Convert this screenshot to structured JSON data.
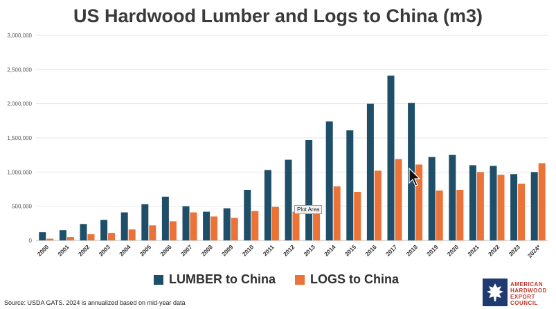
{
  "colors": {
    "lumber": "#1f4e69",
    "logs": "#ec7338",
    "grid": "#e6e6e6",
    "axis_text": "#555555"
  },
  "chart_data": {
    "type": "bar",
    "title": "US Hardwood Lumber and Logs to China (m3)",
    "categories": [
      "2000",
      "2001",
      "2002",
      "2003",
      "2004",
      "2005",
      "2006",
      "2007",
      "2008",
      "2009",
      "2010",
      "2011",
      "2012",
      "2013",
      "2014",
      "2015",
      "2016",
      "2017",
      "2018",
      "2019",
      "2020",
      "2021",
      "2022",
      "2023",
      "2024*"
    ],
    "series": [
      {
        "name": "LUMBER to China",
        "values": [
          120000,
          150000,
          240000,
          300000,
          410000,
          530000,
          640000,
          500000,
          420000,
          470000,
          740000,
          1030000,
          1180000,
          1470000,
          1740000,
          1610000,
          2000000,
          2410000,
          2010000,
          1220000,
          1250000,
          1100000,
          1090000,
          970000,
          1000000
        ]
      },
      {
        "name": "LOGS to China",
        "values": [
          25000,
          50000,
          90000,
          110000,
          160000,
          220000,
          280000,
          410000,
          350000,
          330000,
          430000,
          490000,
          420000,
          400000,
          790000,
          710000,
          1020000,
          1190000,
          1110000,
          730000,
          740000,
          1000000,
          960000,
          830000,
          1130000
        ]
      }
    ],
    "ylim": [
      0,
      3000000
    ],
    "yticks": [
      "0",
      "500,000",
      "1,000,000",
      "1,500,000",
      "2,000,000",
      "2,500,000",
      "3,000,000"
    ],
    "grid": true,
    "legend": "bottom"
  },
  "tooltip": "Plot Area",
  "source": "Source: USDA GATS. 2024 is annualized based on mid-year data",
  "logo": {
    "lines": [
      "AMERICAN",
      "HARDWOOD",
      "EXPORT",
      "COUNCIL"
    ]
  }
}
